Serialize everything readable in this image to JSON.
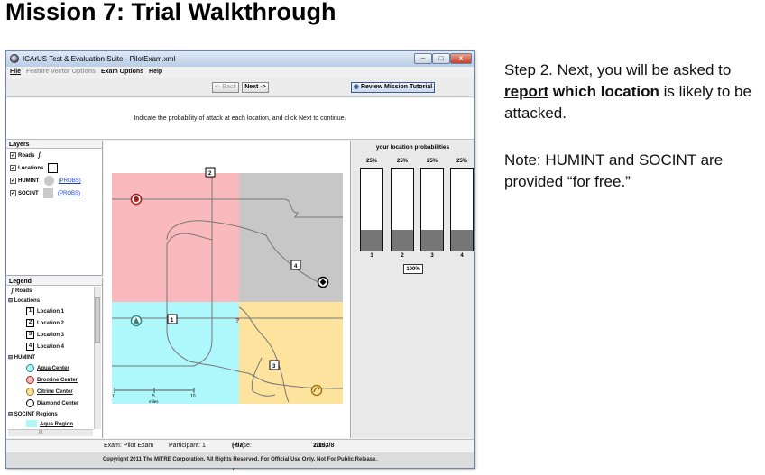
{
  "slide": {
    "title": "Mission 7: Trial Walkthrough",
    "step_prefix": "Step 2. Next, you will be asked to ",
    "step_report": "report",
    "step_bold": " which location",
    "step_suffix": " is likely to be attacked.",
    "note_line": "Note: HUMINT and SOCINT are provided “for free.”"
  },
  "window": {
    "title": "ICArUS Test & Evaluation Suite - PilotExam.xml",
    "controls": {
      "minimize": "–",
      "maximize": "□",
      "close": "x"
    }
  },
  "menu": [
    "File",
    "Feature Vector Options",
    "Exam Options",
    "Help"
  ],
  "toolbar": {
    "back": "<- Back",
    "next": "Next ->",
    "tutorial": "Review Mission Tutorial"
  },
  "instruction": "Indicate the probability of attack at each location, and click Next to continue.",
  "layers": {
    "header": "Layers",
    "items": [
      {
        "label": "Roads",
        "checked": true
      },
      {
        "label": "Locations",
        "checked": true
      },
      {
        "label": "HUMINT",
        "checked": true,
        "probs": "(PROBS)"
      },
      {
        "label": "SOCINT",
        "checked": true,
        "probs": "(PROBS)"
      }
    ]
  },
  "legend": {
    "header": "Legend",
    "roads": "Roads",
    "locations_group": "⊟ Locations",
    "locations": [
      "Location 1",
      "Location 2",
      "Location 3",
      "Location 4"
    ],
    "location_ids": [
      "1",
      "2",
      "3",
      "4"
    ],
    "humint_group": "⊟ HUMINT",
    "centers": [
      "Aqua Center",
      "Bromine Center",
      "Citrine Center",
      "Diamond Center"
    ],
    "socint_group": "⊟ SOCINT Regions",
    "regions": [
      "Aqua Region"
    ],
    "scroll_thumb": "III"
  },
  "map": {
    "scale_ticks": [
      "0",
      "5",
      "10"
    ],
    "scale_unit": "miles",
    "unknown_marker": "?",
    "colors": {
      "aqua": "#aef8fb",
      "bromine": "#f9b9bd",
      "citrine": "#fde39e",
      "diamond": "#c7c7c7",
      "road": "#777777"
    }
  },
  "probabilities": {
    "title": "your location probabilities",
    "locations": [
      "1",
      "2",
      "3",
      "4"
    ],
    "percents": [
      "25%",
      "25%",
      "25%",
      "25%"
    ],
    "fill_fraction": [
      0.25,
      0.25,
      0.25,
      0.25
    ],
    "total": "100%"
  },
  "status": {
    "exam": "Exam: Pilot Exam",
    "participant": "Participant: 1",
    "phase_prefix": "Phase: Mission 7 ",
    "phase_bold": "(7/7)",
    "trial_prefix": "Trial: ",
    "trial_bold": "2/15",
    "part_prefix": ", Part: ",
    "part_bold": "3/8"
  },
  "copyright": "Copyright 2011 The MITRE Corporation. All Rights Reserved. For Official Use Only, Not For Public Release."
}
